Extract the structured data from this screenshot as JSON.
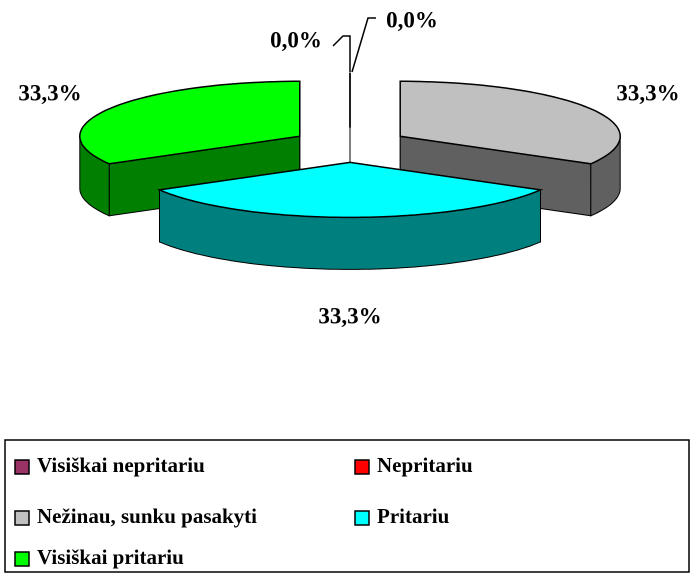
{
  "chart_data": {
    "type": "pie",
    "style": "3d-exploded",
    "categories": [
      "Visiškai nepritariu",
      "Nepritariu",
      "Nežinau, sunku pasakyti",
      "Pritariu",
      "Visiškai pritariu"
    ],
    "values": [
      0,
      0,
      33.3,
      33.3,
      33.3
    ],
    "value_labels": [
      "0,0%",
      "0,0%",
      "33,3%",
      "33,3%",
      "33,3%"
    ],
    "colors": [
      "#993366",
      "#ff0000",
      "#c0c0c0",
      "#00ffff",
      "#00ff00"
    ],
    "legend": "bottom"
  }
}
